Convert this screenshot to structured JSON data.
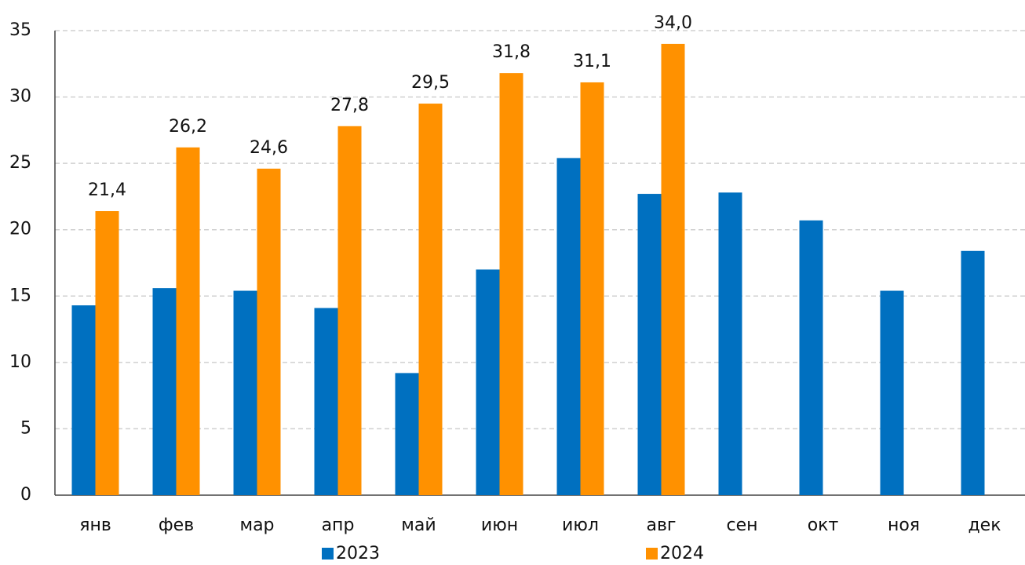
{
  "chart_data": {
    "type": "bar",
    "categories": [
      "янв",
      "фев",
      "мар",
      "апр",
      "май",
      "июн",
      "июл",
      "авг",
      "сен",
      "окт",
      "ноя",
      "дек"
    ],
    "series": [
      {
        "name": "2023",
        "color": "#0070c0",
        "values": [
          14.3,
          15.6,
          15.4,
          14.1,
          9.2,
          17.0,
          25.4,
          22.7,
          22.8,
          20.7,
          15.4,
          18.4
        ]
      },
      {
        "name": "2024",
        "color": "#ff9100",
        "values": [
          21.4,
          26.2,
          24.6,
          27.8,
          29.5,
          31.8,
          31.1,
          34.0,
          null,
          null,
          null,
          null
        ],
        "value_labels": [
          "21,4",
          "26,2",
          "24,6",
          "27,8",
          "29,5",
          "31,8",
          "31,1",
          "34,0",
          null,
          null,
          null,
          null
        ]
      }
    ],
    "ylim": [
      0,
      35
    ],
    "yticks": [
      0,
      5,
      10,
      15,
      20,
      25,
      30,
      35
    ],
    "grid": true,
    "legend": "bottom"
  }
}
